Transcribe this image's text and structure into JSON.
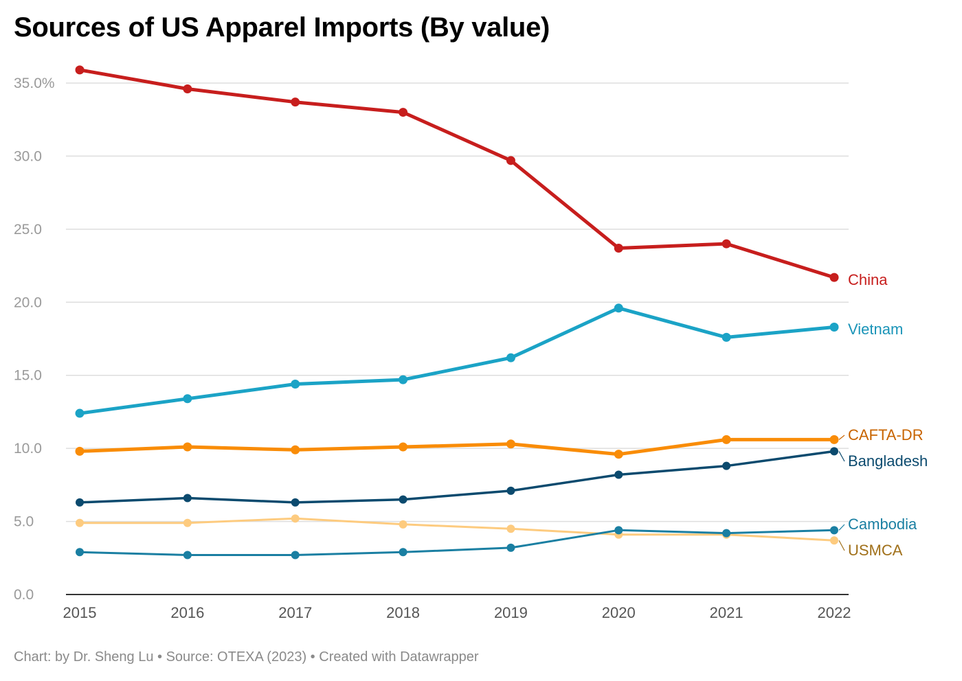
{
  "title": "Sources of US Apparel Imports (By value)",
  "footer": {
    "credit": "Chart: by Dr. Sheng Lu",
    "separator": " • ",
    "source": "Source: OTEXA (2023)",
    "tool": "Created with Datawrapper"
  },
  "chart_data": {
    "type": "line",
    "title": "Sources of US Apparel Imports (By value)",
    "xlabel": "",
    "ylabel": "",
    "x": [
      2015,
      2016,
      2017,
      2018,
      2019,
      2020,
      2021,
      2022
    ],
    "x_tick_labels": [
      "2015",
      "2016",
      "2017",
      "2018",
      "2019",
      "2020",
      "2021",
      "2022"
    ],
    "ylim": [
      0,
      35
    ],
    "y_ticks": [
      0,
      5,
      10,
      15,
      20,
      25,
      30,
      35
    ],
    "y_tick_labels": [
      "0.0",
      "5.0",
      "10.0",
      "15.0",
      "20.0",
      "25.0",
      "30.0",
      "35.0%"
    ],
    "grid": true,
    "legend": "direct labels at line ends (right)",
    "series": [
      {
        "name": "China",
        "color": "#c71e1d",
        "label_color": "#c71e1d",
        "values": [
          35.9,
          34.6,
          33.7,
          33.0,
          29.7,
          23.7,
          24.0,
          21.7
        ]
      },
      {
        "name": "Vietnam",
        "color": "#1ba3c6",
        "label_color": "#1a94b8",
        "values": [
          12.4,
          13.4,
          14.4,
          14.7,
          16.2,
          19.6,
          17.6,
          18.3
        ]
      },
      {
        "name": "CAFTA-DR",
        "color": "#f98c07",
        "label_color": "#c86400",
        "values": [
          9.8,
          10.1,
          9.9,
          10.1,
          10.3,
          9.6,
          10.6,
          10.6
        ]
      },
      {
        "name": "Bangladesh",
        "color": "#0b4a6e",
        "label_color": "#0b4a6e",
        "values": [
          6.3,
          6.6,
          6.3,
          6.5,
          7.1,
          8.2,
          8.8,
          9.8
        ]
      },
      {
        "name": "USMCA",
        "color": "#fdcb7f",
        "label_color": "#a0701a",
        "values": [
          4.9,
          4.9,
          5.2,
          4.8,
          4.5,
          4.1,
          4.1,
          3.7
        ]
      },
      {
        "name": "Cambodia",
        "color": "#1a7fa2",
        "label_color": "#1a7fa2",
        "values": [
          2.9,
          2.7,
          2.7,
          2.9,
          3.2,
          4.4,
          4.2,
          4.4
        ]
      }
    ]
  }
}
